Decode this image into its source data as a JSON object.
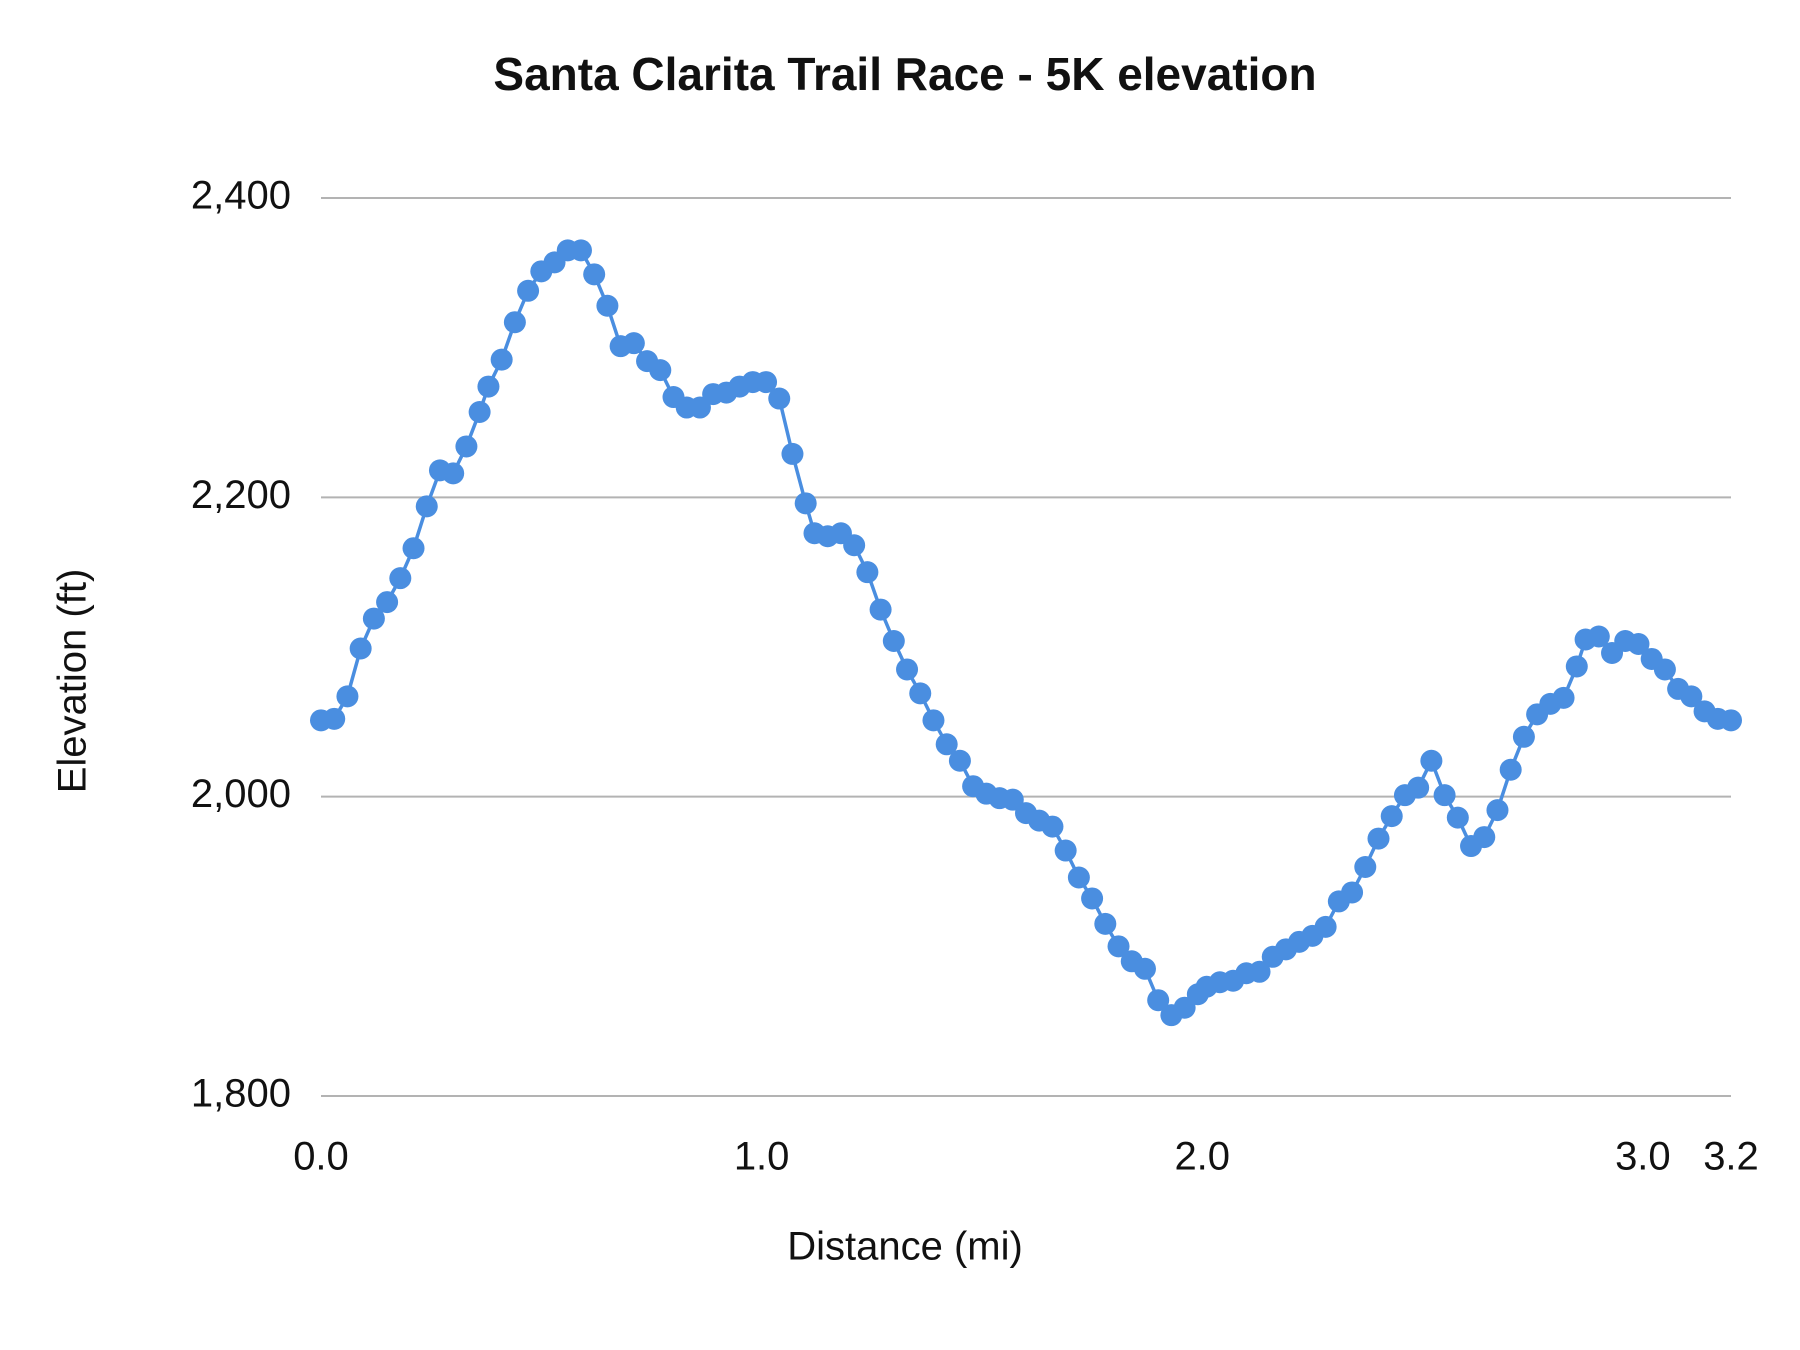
{
  "chart_data": {
    "type": "line",
    "title": "Santa Clarita Trail Race - 5K elevation",
    "x_label": "Distance (mi)",
    "y_label": "Elevation (ft)",
    "x": [
      0,
      0.03,
      0.06,
      0.09,
      0.12,
      0.15,
      0.18,
      0.21,
      0.24,
      0.27,
      0.3,
      0.33,
      0.36,
      0.38,
      0.41,
      0.44,
      0.47,
      0.5,
      0.53,
      0.56,
      0.59,
      0.62,
      0.65,
      0.68,
      0.71,
      0.74,
      0.77,
      0.8,
      0.83,
      0.86,
      0.89,
      0.92,
      0.95,
      0.98,
      1.01,
      1.04,
      1.07,
      1.1,
      1.12,
      1.15,
      1.18,
      1.21,
      1.24,
      1.27,
      1.3,
      1.33,
      1.36,
      1.39,
      1.42,
      1.45,
      1.48,
      1.51,
      1.54,
      1.57,
      1.6,
      1.63,
      1.66,
      1.69,
      1.72,
      1.75,
      1.78,
      1.81,
      1.84,
      1.87,
      1.9,
      1.93,
      1.96,
      1.99,
      2.01,
      2.04,
      2.07,
      2.1,
      2.13,
      2.16,
      2.19,
      2.22,
      2.25,
      2.28,
      2.31,
      2.34,
      2.37,
      2.4,
      2.43,
      2.46,
      2.49,
      2.52,
      2.55,
      2.58,
      2.61,
      2.64,
      2.67,
      2.7,
      2.73,
      2.76,
      2.79,
      2.82,
      2.85,
      2.87,
      2.9,
      2.93,
      2.96,
      2.99,
      3.02,
      3.05,
      3.08,
      3.11,
      3.14,
      3.17,
      3.2
    ],
    "series": [
      {
        "name": "Elevation",
        "color": "#4a8ee0",
        "values": [
          2051,
          2052,
          2067,
          2099,
          2119,
          2130,
          2146,
          2166,
          2194,
          2218,
          2216,
          2234,
          2257,
          2274,
          2292,
          2317,
          2338,
          2351,
          2357,
          2365,
          2365,
          2349,
          2328,
          2301,
          2303,
          2291,
          2285,
          2267,
          2260,
          2260,
          2269,
          2270,
          2274,
          2277,
          2277,
          2266,
          2229,
          2196,
          2176,
          2174,
          2176,
          2168,
          2150,
          2125,
          2104,
          2085,
          2069,
          2051,
          2035,
          2024,
          2007,
          2002,
          1999,
          1998,
          1989,
          1984,
          1980,
          1964,
          1946,
          1932,
          1915,
          1900,
          1890,
          1885,
          1864,
          1854,
          1859,
          1868,
          1873,
          1876,
          1877,
          1882,
          1883,
          1893,
          1898,
          1903,
          1907,
          1913,
          1930,
          1936,
          1953,
          1972,
          1987,
          2001,
          2006,
          2024,
          2001,
          1986,
          1967,
          1973,
          1991,
          2018,
          2040,
          2055,
          2062,
          2066,
          2087,
          2105,
          2107,
          2096,
          2104,
          2102,
          2092,
          2085,
          2072,
          2067,
          2057,
          2052,
          2051
        ]
      }
    ],
    "xlim": [
      0,
      3.2
    ],
    "xticks": [
      {
        "value": 0,
        "label": "0.0"
      },
      {
        "value": 1,
        "label": "1.0"
      },
      {
        "value": 2,
        "label": "2.0"
      },
      {
        "value": 3,
        "label": "3.0"
      },
      3.2
    ],
    "ylim": [
      1800,
      2400
    ],
    "yticks": [
      {
        "value": 1800,
        "label": "1,800"
      },
      {
        "value": 2000,
        "label": "2,000"
      },
      {
        "value": 2200,
        "label": "2,200"
      },
      {
        "value": 2400,
        "label": "2,400"
      }
    ],
    "grid": true,
    "markers": true
  }
}
